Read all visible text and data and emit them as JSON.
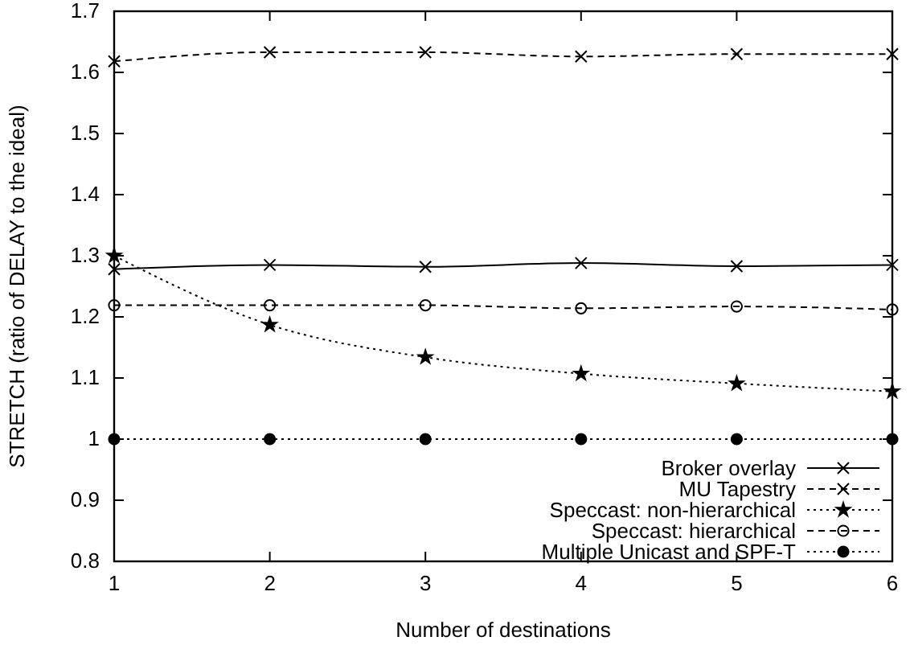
{
  "chart_data": {
    "type": "line",
    "xlabel": "Number of destinations",
    "ylabel": "STRETCH (ratio of DELAY to the ideal)",
    "x": [
      1,
      2,
      3,
      4,
      5,
      6
    ],
    "xlim": [
      1,
      6
    ],
    "xticks": [
      1,
      2,
      3,
      4,
      5,
      6
    ],
    "ylim": [
      0.8,
      1.7
    ],
    "yticks": [
      0.8,
      0.9,
      1,
      1.1,
      1.2,
      1.3,
      1.4,
      1.5,
      1.6,
      1.7
    ],
    "grid": false,
    "legend": "bottom right",
    "series": [
      {
        "name": "Broker overlay",
        "color": "#000000",
        "marker": "cross",
        "line_style": "solid",
        "values": [
          1.278,
          1.285,
          1.282,
          1.288,
          1.283,
          1.285
        ]
      },
      {
        "name": "MU Tapestry",
        "color": "#000000",
        "marker": "cross",
        "line_style": "dashed",
        "values": [
          1.618,
          1.633,
          1.633,
          1.626,
          1.63,
          1.63
        ]
      },
      {
        "name": "Speccast: non-hierarchical",
        "color": "#000000",
        "marker": "star",
        "line_style": "dotted",
        "values": [
          1.3,
          1.187,
          1.134,
          1.107,
          1.091,
          1.078
        ]
      },
      {
        "name": "Speccast: hierarchical",
        "color": "#000000",
        "marker": "circle",
        "line_style": "dashed",
        "values": [
          1.219,
          1.219,
          1.219,
          1.214,
          1.217,
          1.212
        ]
      },
      {
        "name": "Multiple Unicast and SPF-T",
        "color": "#000000",
        "marker": "circle",
        "line_style": "dotted",
        "values": [
          1,
          1,
          1,
          1,
          1,
          1
        ]
      }
    ]
  }
}
